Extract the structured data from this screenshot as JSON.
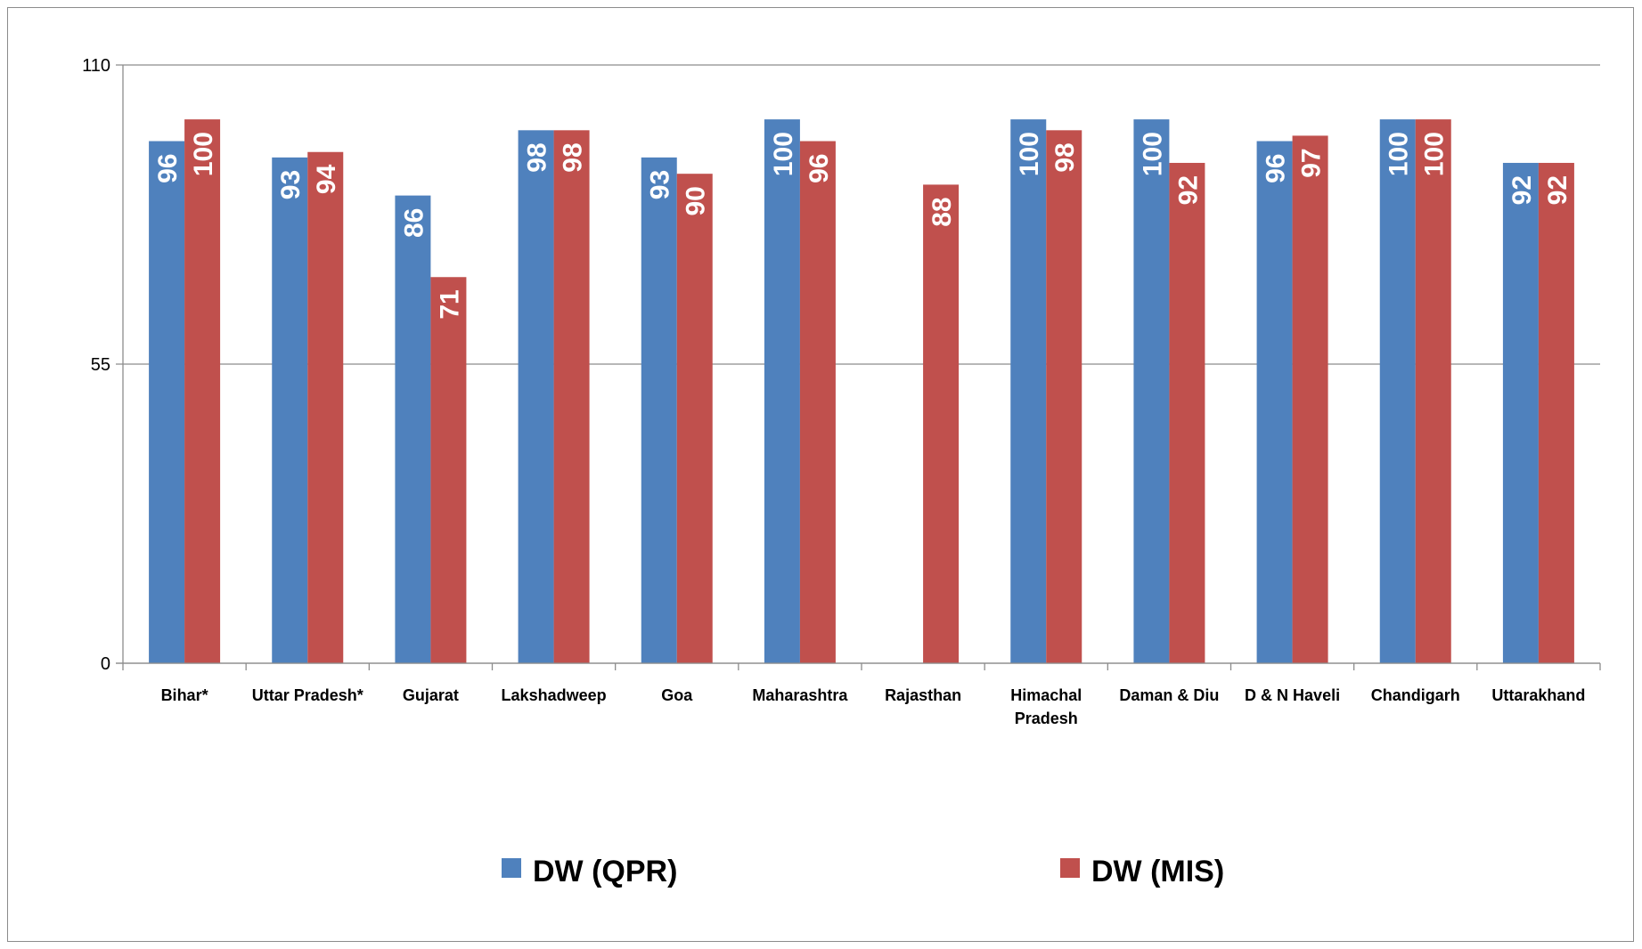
{
  "chart_data": {
    "type": "bar",
    "categories": [
      "Bihar*",
      "Uttar Pradesh*",
      "Gujarat",
      "Lakshadweep",
      "Goa",
      "Maharashtra",
      "Rajasthan",
      "Himachal Pradesh",
      "Daman & Diu",
      "D & N Haveli",
      "Chandigarh",
      "Uttarakhand"
    ],
    "category_lines": [
      [
        "Bihar*"
      ],
      [
        "Uttar Pradesh*"
      ],
      [
        "Gujarat"
      ],
      [
        "Lakshadweep"
      ],
      [
        "Goa"
      ],
      [
        "Maharashtra"
      ],
      [
        "Rajasthan"
      ],
      [
        "Himachal",
        "Pradesh"
      ],
      [
        "Daman & Diu"
      ],
      [
        "D & N Haveli"
      ],
      [
        "Chandigarh"
      ],
      [
        "Uttarakhand"
      ]
    ],
    "series": [
      {
        "name": "DW (QPR)",
        "color": "#4F81BD",
        "values": [
          96,
          93,
          86,
          98,
          93,
          100,
          null,
          100,
          100,
          96,
          100,
          92
        ]
      },
      {
        "name": "DW (MIS)",
        "color": "#C0504D",
        "values": [
          100,
          94,
          71,
          98,
          90,
          96,
          88,
          98,
          92,
          97,
          100,
          92
        ]
      }
    ],
    "yticks": [
      "0",
      "55",
      "110"
    ],
    "ylim": [
      0,
      110
    ],
    "grid": true,
    "legend_position": "bottom"
  }
}
